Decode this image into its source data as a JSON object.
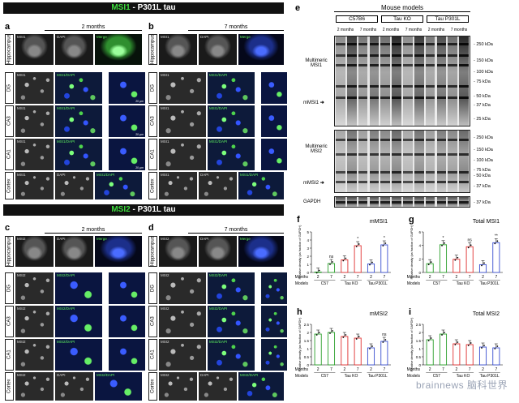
{
  "banner_top": {
    "green": "MSI1",
    "rest": " - P301L tau"
  },
  "banner_mid": {
    "green": "MSI2",
    "rest": " - P301L tau"
  },
  "panels": {
    "a": {
      "letter": "a",
      "title": "2 months"
    },
    "b": {
      "letter": "b",
      "title": "7 months"
    },
    "c": {
      "letter": "c",
      "title": "2 months"
    },
    "d": {
      "letter": "d",
      "title": "7 months"
    }
  },
  "row_labels": [
    "Hippocampus",
    "DG",
    "CA3",
    "CA1",
    "Cortex"
  ],
  "channel_labels": {
    "msi1": "MSI1",
    "msi2": "MSI2",
    "dapi": "DAPI",
    "merge": "Merge",
    "msi1_dapi": "MSI1/DAPI",
    "msi2_dapi": "MSI2/DAPI"
  },
  "scale": {
    "big": "500 µm",
    "small": "20 µm",
    "mid": "50 µm"
  },
  "panel_e": {
    "letter": "e",
    "title": "Mouse models",
    "groups": [
      "C57B6",
      "Tau KO",
      "Tau P301L"
    ],
    "ages": [
      "2 months",
      "7 months",
      "2 months",
      "7 months",
      "2 months",
      "7 months"
    ],
    "left_labels": {
      "multimeric1": "Multimeric MSI1",
      "mmsi1": "mMSI1",
      "multimeric2": "Multimeric MSI2",
      "mmsi2": "mMSI2",
      "gapdh": "GAPDH"
    },
    "kda1": [
      "250 kDa",
      "150 kDa",
      "100 kDa",
      "75 kDa",
      "50 kDa",
      "37 kDa",
      "25 kDa"
    ],
    "kda2": [
      "250 kDa",
      "150 kDa",
      "100 kDa",
      "75 kDa"
    ],
    "kda3": [
      "50 kDa",
      "37 kDa"
    ],
    "kda4": "37 kDa"
  },
  "chart_data": [
    {
      "panel": "f",
      "type": "bar",
      "title": "mMSI1",
      "ylabel": "Relative density (as fraction of GAPDH)",
      "ylim": [
        0,
        5
      ],
      "yticks": [
        0,
        1,
        2,
        3,
        4,
        5
      ],
      "months": [
        "2",
        "7",
        "2",
        "7",
        "2",
        "7"
      ],
      "models": [
        "C57",
        "Tau KO",
        "Tau P301L"
      ],
      "values": [
        0.05,
        1.1,
        1.55,
        3.3,
        1.05,
        3.4
      ],
      "colors": [
        "#2aa02a",
        "#2aa02a",
        "#e03030",
        "#e03030",
        "#3a4fd0",
        "#3a4fd0"
      ],
      "annotations": [
        "",
        "ns",
        "",
        "*",
        "",
        "*"
      ]
    },
    {
      "panel": "g",
      "type": "bar",
      "title": "Total MSI1",
      "ylabel": "Relative density (as fraction of GAPDH)",
      "ylim": [
        0,
        6
      ],
      "yticks": [
        0,
        2,
        4,
        6
      ],
      "months": [
        "2",
        "7",
        "2",
        "7",
        "2",
        "7"
      ],
      "models": [
        "C57",
        "Tau KO",
        "Tau P301L"
      ],
      "values": [
        1.3,
        4.1,
        1.95,
        3.8,
        1.15,
        4.4
      ],
      "colors": [
        "#2aa02a",
        "#2aa02a",
        "#e03030",
        "#e03030",
        "#3a4fd0",
        "#3a4fd0"
      ],
      "annotations": [
        "",
        "*",
        "",
        "ns",
        "",
        "**"
      ]
    },
    {
      "panel": "h",
      "type": "bar",
      "title": "mMSI2",
      "ylabel": "Relative density (as fraction of GAPDH)",
      "ylim": [
        0,
        2.5
      ],
      "yticks": [
        0,
        0.5,
        1.0,
        1.5,
        2.0,
        2.5
      ],
      "months": [
        "2",
        "7",
        "2",
        "7",
        "2",
        "7"
      ],
      "models": [
        "C57",
        "Tau KO",
        "Tau P301L"
      ],
      "values": [
        1.9,
        2.0,
        1.75,
        1.65,
        1.05,
        1.45
      ],
      "colors": [
        "#2aa02a",
        "#2aa02a",
        "#e03030",
        "#e03030",
        "#3a4fd0",
        "#3a4fd0"
      ],
      "annotations": [
        "",
        "",
        "",
        "",
        "",
        "ns"
      ]
    },
    {
      "panel": "i",
      "type": "bar",
      "title": "Total MSI2",
      "ylabel": "Relative density (as fraction of GAPDH)",
      "ylim": [
        0,
        2.5
      ],
      "yticks": [
        0,
        0.5,
        1.0,
        1.5,
        2.0,
        2.5
      ],
      "months": [
        "2",
        "7",
        "2",
        "7",
        "2",
        "7"
      ],
      "models": [
        "C57",
        "Tau KO",
        "Tau P301L"
      ],
      "values": [
        1.55,
        1.9,
        1.3,
        1.25,
        1.1,
        1.05
      ],
      "colors": [
        "#2aa02a",
        "#2aa02a",
        "#e03030",
        "#e03030",
        "#3a4fd0",
        "#3a4fd0"
      ],
      "annotations": [
        "",
        "",
        "",
        "",
        "",
        ""
      ]
    }
  ],
  "axis_words": {
    "months": "Months",
    "models": "Models"
  },
  "watermark": "brainnews 脑科世界"
}
